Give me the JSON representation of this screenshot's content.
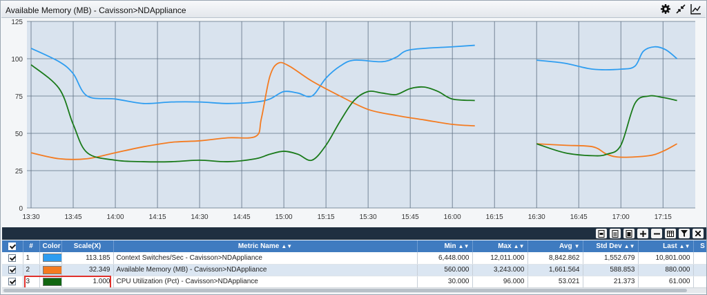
{
  "window": {
    "title": "Available Memory (MB) - Cavisson>NDAppliance"
  },
  "title_icons": [
    "gear-icon",
    "collapse-arrows-icon",
    "line-chart-icon"
  ],
  "chart_data": {
    "type": "line",
    "title": "",
    "xlabel": "",
    "ylabel": "",
    "ylim": [
      0,
      125
    ],
    "yticks": [
      "0",
      "25",
      "50",
      "75",
      "100",
      "125"
    ],
    "xtick_labels": [
      "13:30",
      "13:45",
      "14:00",
      "14:15",
      "14:30",
      "14:45",
      "15:00",
      "15:15",
      "15:30",
      "15:45",
      "16:00",
      "16:15",
      "16:30",
      "16:45",
      "17:00",
      "17:15"
    ],
    "x_unit_minutes_from_first_tick": [
      0,
      15,
      30,
      45,
      60,
      75,
      90,
      105,
      120,
      135,
      150,
      165,
      180,
      195,
      210,
      225
    ],
    "grid": true,
    "series": [
      {
        "name": "Context Switches/Sec - Cavisson>NDAppliance",
        "color": "#2e9df0",
        "segments": [
          [
            [
              0,
              107
            ],
            [
              10,
              98
            ],
            [
              15,
              90
            ],
            [
              20,
              75
            ],
            [
              30,
              73
            ],
            [
              40,
              70
            ],
            [
              50,
              71
            ],
            [
              60,
              71
            ],
            [
              70,
              70
            ],
            [
              80,
              71
            ],
            [
              85,
              73
            ],
            [
              90,
              78
            ],
            [
              95,
              77
            ],
            [
              100,
              75
            ],
            [
              105,
              87
            ],
            [
              110,
              95
            ],
            [
              115,
              99
            ],
            [
              125,
              98
            ],
            [
              130,
              101
            ],
            [
              135,
              106
            ],
            [
              150,
              108
            ],
            [
              158,
              109
            ]
          ],
          [
            [
              180,
              99
            ],
            [
              190,
              97
            ],
            [
              200,
              93
            ],
            [
              210,
              93
            ],
            [
              215,
              95
            ],
            [
              218,
              105
            ],
            [
              222,
              108
            ],
            [
              226,
              106
            ],
            [
              230,
              100
            ]
          ]
        ]
      },
      {
        "name": "Available Memory (MB) - Cavisson>NDAppliance",
        "color": "#f47b20",
        "segments": [
          [
            [
              0,
              37
            ],
            [
              10,
              33
            ],
            [
              20,
              33
            ],
            [
              30,
              37
            ],
            [
              40,
              41
            ],
            [
              50,
              44
            ],
            [
              60,
              45
            ],
            [
              70,
              47
            ],
            [
              80,
              48
            ],
            [
              82,
              60
            ],
            [
              85,
              88
            ],
            [
              88,
              97
            ],
            [
              92,
              95
            ],
            [
              100,
              85
            ],
            [
              110,
              75
            ],
            [
              120,
              66
            ],
            [
              130,
              62
            ],
            [
              140,
              59
            ],
            [
              150,
              56
            ],
            [
              158,
              55
            ]
          ],
          [
            [
              180,
              43
            ],
            [
              190,
              42
            ],
            [
              200,
              41
            ],
            [
              205,
              36
            ],
            [
              210,
              34
            ],
            [
              220,
              35
            ],
            [
              225,
              38
            ],
            [
              230,
              43
            ]
          ]
        ]
      },
      {
        "name": "CPU Utilization (Pct) - Cavisson>NDAppliance",
        "color": "#1a7a1a",
        "segments": [
          [
            [
              0,
              96
            ],
            [
              10,
              80
            ],
            [
              15,
              56
            ],
            [
              20,
              37
            ],
            [
              30,
              32
            ],
            [
              40,
              31
            ],
            [
              50,
              31
            ],
            [
              60,
              32
            ],
            [
              70,
              31
            ],
            [
              80,
              33
            ],
            [
              85,
              36
            ],
            [
              90,
              38
            ],
            [
              95,
              36
            ],
            [
              100,
              32
            ],
            [
              105,
              42
            ],
            [
              110,
              58
            ],
            [
              115,
              72
            ],
            [
              120,
              78
            ],
            [
              125,
              77
            ],
            [
              130,
              76
            ],
            [
              135,
              80
            ],
            [
              140,
              81
            ],
            [
              145,
              78
            ],
            [
              150,
              73
            ],
            [
              158,
              72
            ]
          ],
          [
            [
              180,
              43
            ],
            [
              190,
              37
            ],
            [
              200,
              35
            ],
            [
              205,
              36
            ],
            [
              210,
              42
            ],
            [
              215,
              70
            ],
            [
              220,
              75
            ],
            [
              225,
              74
            ],
            [
              230,
              72
            ]
          ]
        ]
      }
    ]
  },
  "toolbar": {
    "buttons": [
      {
        "icon": "pdf-export-icon"
      },
      {
        "icon": "word-export-icon"
      },
      {
        "icon": "excel-export-icon"
      },
      {
        "icon": "plus-icon"
      },
      {
        "icon": "minus-icon"
      },
      {
        "icon": "columns-icon"
      },
      {
        "icon": "filter-icon"
      },
      {
        "icon": "close-icon"
      }
    ]
  },
  "grid": {
    "headers": {
      "index": "#",
      "color": "Color",
      "scale": "Scale(X)",
      "metric": "Metric Name",
      "min": "Min",
      "max": "Max",
      "avg": "Avg",
      "stddev": "Std Dev",
      "last": "Last",
      "extra": "S"
    },
    "rows": [
      {
        "index": "1",
        "color": "#2e9df0",
        "scale": "113.185",
        "metric": "Context Switches/Sec - Cavisson>NDAppliance",
        "min": "6,448.000",
        "max": "12,011.000",
        "avg": "8,842.862",
        "stddev": "1,552.679",
        "last": "10,801.000"
      },
      {
        "index": "2",
        "color": "#f47b20",
        "scale": "32.349",
        "metric": "Available Memory (MB) - Cavisson>NDAppliance",
        "min": "560.000",
        "max": "3,243.000",
        "avg": "1,661.564",
        "stddev": "588.853",
        "last": "880.000"
      },
      {
        "index": "3",
        "color": "#116611",
        "scale": "1.000",
        "metric": "CPU Utilization (Pct) - Cavisson>NDAppliance",
        "min": "30.000",
        "max": "96.000",
        "avg": "53.021",
        "stddev": "21.373",
        "last": "61.000"
      }
    ]
  }
}
